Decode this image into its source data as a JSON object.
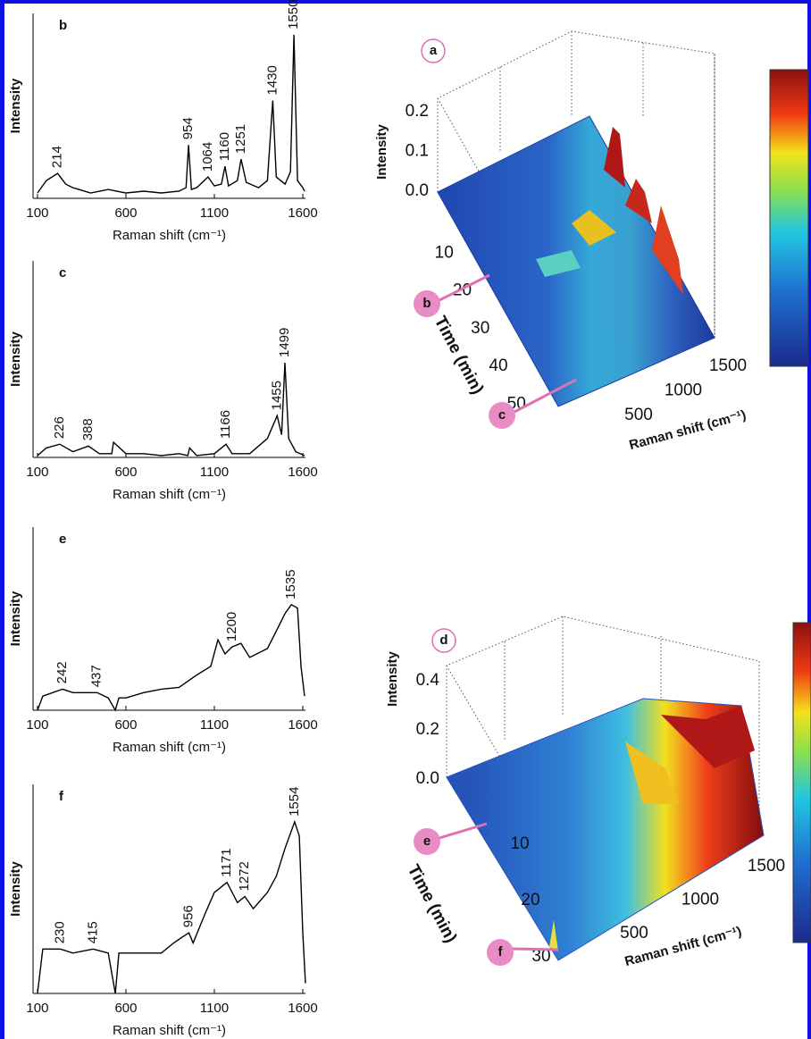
{
  "chart_data": [
    {
      "type": "line",
      "panel_label": "b",
      "ylabel": "Intensity",
      "xlabel": "Raman shift (cm⁻¹)",
      "color": "#000000",
      "xlim": [
        75,
        1615
      ],
      "xticks": [
        100,
        600,
        1100,
        1600
      ],
      "ylim": [
        0,
        1
      ],
      "x": [
        100,
        150,
        214,
        260,
        300,
        400,
        500,
        600,
        700,
        800,
        900,
        940,
        954,
        970,
        1000,
        1064,
        1100,
        1140,
        1160,
        1180,
        1230,
        1251,
        1280,
        1350,
        1400,
        1430,
        1450,
        1500,
        1530,
        1550,
        1570,
        1600,
        1610
      ],
      "values": [
        0.03,
        0.1,
        0.14,
        0.08,
        0.06,
        0.03,
        0.05,
        0.03,
        0.04,
        0.03,
        0.04,
        0.06,
        0.3,
        0.05,
        0.06,
        0.12,
        0.07,
        0.08,
        0.18,
        0.07,
        0.1,
        0.22,
        0.09,
        0.06,
        0.1,
        0.55,
        0.12,
        0.08,
        0.15,
        0.92,
        0.1,
        0.06,
        0.04
      ],
      "peaks": [
        214,
        954,
        1064,
        1160,
        1251,
        1430,
        1550
      ]
    },
    {
      "type": "line",
      "panel_label": "c",
      "ylabel": "Intensity",
      "xlabel": "Raman shift (cm⁻¹)",
      "color": "#000000",
      "xlim": [
        75,
        1615
      ],
      "xticks": [
        100,
        600,
        1100,
        1600
      ],
      "ylim": [
        0,
        1
      ],
      "x": [
        100,
        150,
        226,
        300,
        388,
        450,
        520,
        530,
        600,
        700,
        800,
        900,
        950,
        960,
        1000,
        1100,
        1166,
        1200,
        1300,
        1400,
        1455,
        1480,
        1499,
        1520,
        1560,
        1610
      ],
      "values": [
        0.01,
        0.05,
        0.07,
        0.03,
        0.06,
        0.02,
        0.02,
        0.08,
        0.02,
        0.02,
        0.01,
        0.02,
        0.01,
        0.05,
        0.01,
        0.02,
        0.07,
        0.02,
        0.02,
        0.1,
        0.22,
        0.12,
        0.5,
        0.1,
        0.03,
        0.01
      ],
      "peaks": [
        226,
        388,
        1166,
        1455,
        1499
      ]
    },
    {
      "type": "line",
      "panel_label": "e",
      "ylabel": "Intensity",
      "xlabel": "Raman shift (cm⁻¹)",
      "color": "#000000",
      "xlim": [
        75,
        1615
      ],
      "xticks": [
        100,
        600,
        1100,
        1600
      ],
      "ylim": [
        0,
        1
      ],
      "x": [
        100,
        130,
        242,
        300,
        437,
        500,
        540,
        560,
        600,
        700,
        800,
        900,
        1000,
        1080,
        1120,
        1160,
        1200,
        1250,
        1300,
        1400,
        1450,
        1500,
        1535,
        1570,
        1590,
        1610
      ],
      "values": [
        0,
        0.08,
        0.12,
        0.1,
        0.1,
        0.07,
        0,
        0.07,
        0.07,
        0.1,
        0.12,
        0.13,
        0.2,
        0.25,
        0.4,
        0.32,
        0.36,
        0.38,
        0.3,
        0.35,
        0.45,
        0.55,
        0.6,
        0.58,
        0.25,
        0.08
      ],
      "peaks": [
        242,
        437,
        1200,
        1535
      ]
    },
    {
      "type": "line",
      "panel_label": "f",
      "ylabel": "Intensity",
      "xlabel": "Raman shift (cm⁻¹)",
      "color": "#000000",
      "xlim": [
        75,
        1615
      ],
      "xticks": [
        100,
        600,
        1100,
        1600
      ],
      "ylim": [
        0,
        1
      ],
      "x": [
        100,
        130,
        230,
        300,
        415,
        500,
        540,
        560,
        600,
        700,
        800,
        870,
        920,
        956,
        980,
        1050,
        1100,
        1171,
        1230,
        1272,
        1320,
        1400,
        1450,
        1500,
        1554,
        1580,
        1600,
        1615
      ],
      "values": [
        0,
        0.22,
        0.22,
        0.2,
        0.22,
        0.2,
        0,
        0.2,
        0.2,
        0.2,
        0.2,
        0.25,
        0.28,
        0.3,
        0.25,
        0.4,
        0.5,
        0.55,
        0.45,
        0.48,
        0.42,
        0.5,
        0.58,
        0.72,
        0.85,
        0.78,
        0.3,
        0.05
      ],
      "peaks": [
        230,
        415,
        956,
        1171,
        1272,
        1554
      ]
    },
    {
      "type": "surface",
      "panel_label": "a",
      "zlabel": "Intensity",
      "ylabel": "Time (min)",
      "xlabel": "Raman shift (cm⁻¹)",
      "zticks": [
        {
          "value": 0,
          "label": "0.0"
        },
        0.1,
        0.2
      ],
      "yticks": [
        10,
        20,
        30,
        40,
        50
      ],
      "xticks": [
        500,
        1000,
        1500
      ],
      "markers": [
        "b",
        "c"
      ]
    },
    {
      "type": "surface",
      "panel_label": "d",
      "zlabel": "Intensity",
      "ylabel": "Time (min)",
      "xlabel": "Raman shift (cm⁻¹)",
      "zticks": [
        {
          "value": 0,
          "label": "0.0"
        },
        0.2,
        0.4
      ],
      "yticks": [
        10,
        20,
        30
      ],
      "xticks": [
        500,
        1000,
        1500
      ],
      "markers": [
        "e",
        "f"
      ]
    }
  ]
}
